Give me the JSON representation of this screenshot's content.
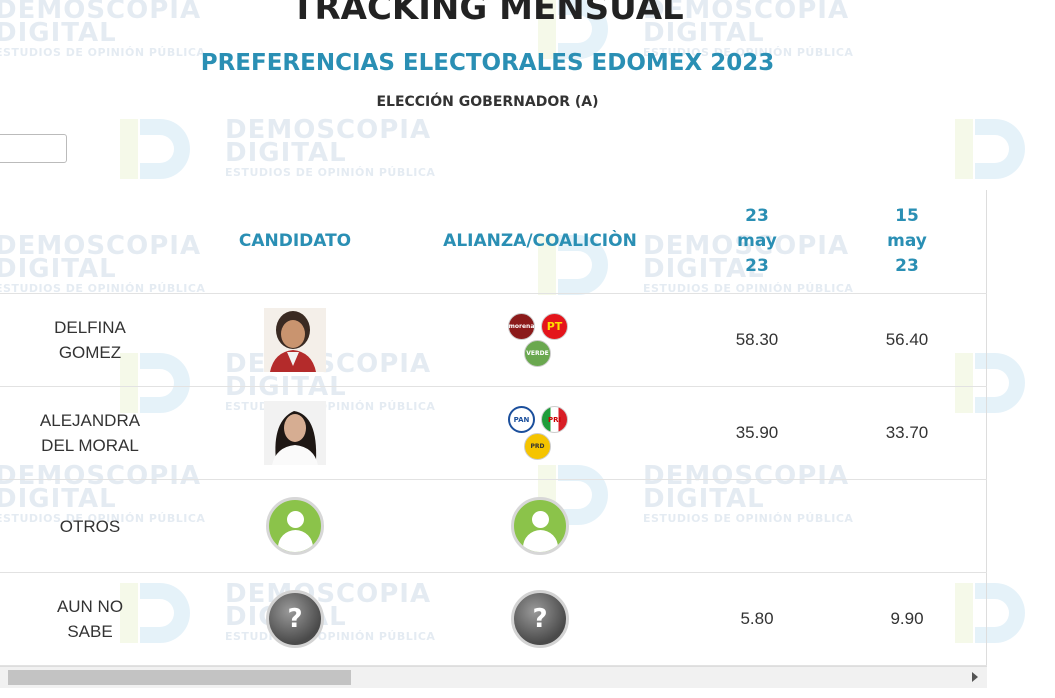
{
  "page": {
    "title": "TRACKING MENSUAL",
    "subtitle": "PREFERENCIAS ELECTORALES EDOMEX 2023",
    "election": "ELECCIÓN GOBERNADOR (A)"
  },
  "search": {
    "value": "",
    "placeholder": ""
  },
  "watermark": {
    "line1": "DEMOSCOPIA",
    "line2": "DIGITAL",
    "line3": "ESTUDIOS DE OPINIÓN PÚBLICA"
  },
  "table": {
    "headers": {
      "candidate": "CANDIDATO",
      "alliance": "ALIANZA/COALICIÒN",
      "col1": {
        "day": "23",
        "month": "may",
        "year": "23"
      },
      "col2": {
        "day": "15",
        "month": "may",
        "year": "23"
      }
    },
    "rows": [
      {
        "name_line1": "DELFINA",
        "name_line2": "GOMEZ",
        "v1": "58.30",
        "v2": "56.40",
        "parties": [
          "morena",
          "PT",
          "VERDE"
        ]
      },
      {
        "name_line1": "ALEJANDRA",
        "name_line2": "DEL MORAL",
        "v1": "35.90",
        "v2": "33.70",
        "parties": [
          "PAN",
          "PRI",
          "PRD"
        ]
      },
      {
        "name_line1": "OTROS",
        "name_line2": "",
        "v1": "",
        "v2": ""
      },
      {
        "name_line1": "AUN NO",
        "name_line2": "SABE",
        "v1": "5.80",
        "v2": "9.90"
      }
    ],
    "unknown_symbol": "?"
  },
  "colors": {
    "accent": "#2a8fb4",
    "morena": "#8b1a1a",
    "pt": "#e4141b",
    "verde": "#6aa84f",
    "pan": "#1b4f9c",
    "prd": "#f5c400",
    "avatar": "#8bc34a"
  }
}
